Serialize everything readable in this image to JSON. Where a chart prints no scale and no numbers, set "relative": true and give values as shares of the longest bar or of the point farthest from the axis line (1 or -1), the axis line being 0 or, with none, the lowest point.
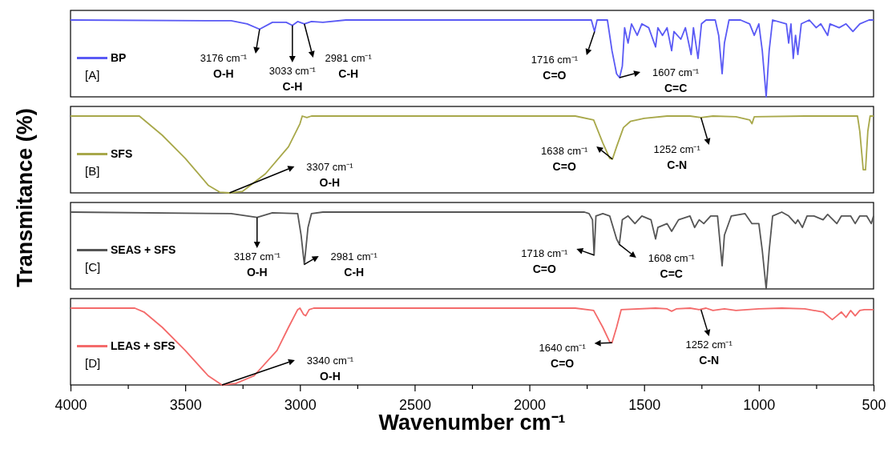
{
  "chart_data": [
    {
      "type": "line",
      "relative": true,
      "xlim": [
        4000,
        500
      ],
      "tick_labels": false,
      "legend": "left",
      "marker": "none",
      "line_style": "solid",
      "ylabel": "Transmitance (%)",
      "series": [
        {
          "name": "BP",
          "color": "#5a5af5",
          "x": [
            4000,
            3300,
            3230,
            3176,
            3120,
            3060,
            3033,
            3010,
            2981,
            2950,
            2900,
            2800,
            2000,
            1730,
            1716,
            1705,
            1660,
            1640,
            1620,
            1607,
            1595,
            1585,
            1570,
            1555,
            1530,
            1510,
            1480,
            1450,
            1440,
            1420,
            1400,
            1380,
            1370,
            1340,
            1320,
            1295,
            1285,
            1265,
            1250,
            1230,
            1190,
            1175,
            1160,
            1150,
            1130,
            1080,
            1040,
            1020,
            1000,
            985,
            968,
            955,
            940,
            880,
            870,
            860,
            850,
            840,
            830,
            815,
            780,
            750,
            730,
            700,
            690,
            650,
            620,
            590,
            560,
            520,
            500
          ],
          "values": [
            1,
            0.99,
            0.95,
            0.88,
            0.97,
            0.97,
            0.93,
            0.98,
            0.95,
            0.98,
            0.97,
            1,
            1,
            1,
            0.85,
            1,
            1,
            0.6,
            0.3,
            0.25,
            0.4,
            0.9,
            0.7,
            0.95,
            0.8,
            0.95,
            0.9,
            0.65,
            0.9,
            0.8,
            0.9,
            0.6,
            0.85,
            0.75,
            0.9,
            0.55,
            0.9,
            0.5,
            0.95,
            1,
            1,
            0.8,
            0.3,
            0.7,
            1,
            1,
            0.95,
            0.8,
            0.95,
            0.6,
            0,
            0.6,
            1,
            0.95,
            0.7,
            0.95,
            0.5,
            0.8,
            0.55,
            0.95,
            1,
            0.9,
            0.95,
            0.8,
            0.95,
            0.9,
            0.95,
            0.85,
            0.95,
            1,
            1
          ]
        }
      ],
      "annotations": [
        "[A]",
        {
          "text": "3176 cm⁻¹\nO-H",
          "x": 3176,
          "y": 0.88
        },
        {
          "text": "3033 cm⁻¹\nC-H",
          "x": 3033,
          "y": 0.93
        },
        {
          "text": "2981 cm⁻¹\nC-H",
          "x": 2981,
          "y": 0.95
        },
        {
          "text": "1716 cm⁻¹\nC=O",
          "x": 1716,
          "y": 0.85
        },
        {
          "text": "1607 cm⁻¹\nC=C",
          "x": 1607,
          "y": 0.25
        }
      ]
    },
    {
      "type": "line",
      "relative": true,
      "xlim": [
        4000,
        500
      ],
      "tick_labels": false,
      "legend": "left",
      "marker": "none",
      "line_style": "solid",
      "series": [
        {
          "name": "SFS",
          "color": "#a8a84a",
          "x": [
            4000,
            3700,
            3600,
            3500,
            3400,
            3350,
            3307,
            3250,
            3150,
            3050,
            3000,
            2990,
            2970,
            2950,
            1800,
            1720,
            1680,
            1650,
            1638,
            1620,
            1590,
            1560,
            1500,
            1400,
            1300,
            1252,
            1200,
            1100,
            1040,
            1030,
            1020,
            800,
            570,
            560,
            545,
            535,
            525,
            515,
            500
          ],
          "values": [
            1,
            1,
            0.75,
            0.45,
            0.1,
            0.01,
            0,
            0.02,
            0.25,
            0.6,
            0.9,
            1,
            0.98,
            1,
            1,
            0.95,
            0.65,
            0.45,
            0.44,
            0.6,
            0.85,
            0.93,
            0.97,
            1,
            1,
            0.98,
            1,
            0.99,
            0.95,
            0.9,
            0.99,
            1,
            1,
            0.8,
            0.3,
            0.3,
            0.8,
            1,
            1
          ]
        }
      ],
      "annotations": [
        "[B]",
        "3307 cm⁻¹\nO-H",
        {
          "text": "1638 cm⁻¹\nC=O",
          "x": 1638,
          "y": 0.44
        },
        {
          "text": "1252 cm⁻¹\nC-N",
          "x": 1252,
          "y": 0.98
        }
      ]
    },
    {
      "type": "line",
      "relative": true,
      "xlim": [
        4000,
        500
      ],
      "tick_labels": false,
      "legend": "left",
      "marker": "none",
      "line_style": "solid",
      "series": [
        {
          "name": "SEAS + SFS",
          "color": "#555555",
          "x": [
            4000,
            3300,
            3187,
            3120,
            3010,
            2995,
            2981,
            2965,
            2950,
            2900,
            1760,
            1740,
            1725,
            1718,
            1710,
            1680,
            1650,
            1620,
            1608,
            1595,
            1570,
            1540,
            1510,
            1470,
            1450,
            1440,
            1400,
            1380,
            1350,
            1300,
            1280,
            1260,
            1240,
            1210,
            1180,
            1160,
            1150,
            1120,
            1060,
            1030,
            1000,
            985,
            968,
            955,
            940,
            900,
            870,
            840,
            830,
            810,
            790,
            760,
            720,
            700,
            660,
            640,
            600,
            580,
            560,
            530,
            510,
            500
          ],
          "values": [
            1,
            0.98,
            0.93,
            0.99,
            0.98,
            0.7,
            0.32,
            0.8,
            0.98,
            1,
            1,
            0.98,
            0.9,
            0.44,
            0.95,
            0.98,
            0.95,
            0.65,
            0.58,
            0.9,
            0.95,
            0.85,
            0.95,
            0.9,
            0.65,
            0.8,
            0.85,
            0.75,
            0.9,
            0.95,
            0.8,
            0.9,
            0.85,
            0.95,
            0.95,
            0.3,
            0.7,
            0.95,
            0.98,
            0.85,
            0.85,
            0.5,
            0,
            0.5,
            0.95,
            1,
            0.95,
            0.85,
            0.9,
            0.8,
            0.95,
            0.95,
            0.9,
            0.97,
            0.85,
            0.95,
            0.95,
            0.85,
            0.95,
            0.95,
            0.85,
            0.95
          ]
        }
      ],
      "annotations": [
        "[C]",
        {
          "text": "3187 cm⁻¹\nO-H",
          "x": 3187,
          "y": 0.93
        },
        {
          "text": "2981 cm⁻¹\nC-H",
          "x": 2981,
          "y": 0.32
        },
        {
          "text": "1718 cm⁻¹\nC=O",
          "x": 1718,
          "y": 0.44
        },
        {
          "text": "1608 cm⁻¹\nC=C",
          "x": 1608,
          "y": 0.58
        }
      ]
    },
    {
      "type": "line",
      "relative": true,
      "xlim": [
        4000,
        500
      ],
      "tick_labels": "x",
      "legend": "left",
      "marker": "none",
      "line_style": "solid",
      "xlabel": "Wavenumber cm⁻¹",
      "xticks": [
        4000,
        {
          "value": 3750,
          "label": null
        },
        3500,
        {
          "value": 3250,
          "label": null
        },
        3000,
        {
          "value": 2750,
          "label": null
        },
        2500,
        {
          "value": 2250,
          "label": null
        },
        2000,
        {
          "value": 1750,
          "label": null
        },
        1500,
        {
          "value": 1250,
          "label": null
        },
        1000,
        {
          "value": 750,
          "label": null
        },
        500
      ],
      "series": [
        {
          "name": "LEAS + SFS",
          "color": "#f46a6a",
          "x": [
            4000,
            3720,
            3680,
            3600,
            3500,
            3400,
            3340,
            3280,
            3200,
            3100,
            3050,
            3010,
            3000,
            2985,
            2975,
            2960,
            2940,
            1800,
            1720,
            1680,
            1650,
            1640,
            1620,
            1600,
            1450,
            1400,
            1380,
            1360,
            1300,
            1260,
            1230,
            1200,
            1150,
            1100,
            1000,
            900,
            800,
            720,
            680,
            660,
            640,
            620,
            600,
            580,
            560,
            540,
            500
          ],
          "values": [
            1,
            1,
            0.95,
            0.75,
            0.45,
            0.12,
            0,
            0.02,
            0.12,
            0.45,
            0.75,
            0.98,
            1,
            0.92,
            0.9,
            0.98,
            1,
            1,
            0.97,
            0.75,
            0.56,
            0.55,
            0.75,
            0.98,
            1,
            0.99,
            0.96,
            0.99,
            1,
            0.98,
            1,
            0.97,
            0.99,
            0.97,
            0.99,
            1,
            0.99,
            0.95,
            0.85,
            0.9,
            0.95,
            0.88,
            0.97,
            0.9,
            0.97,
            0.98,
            0.98
          ]
        }
      ],
      "annotations": [
        "[D]",
        "3340 cm⁻¹\nO-H",
        {
          "text": "1640 cm⁻¹\nC=O",
          "x": 1640,
          "y": 0.55
        },
        {
          "text": "1252 cm⁻¹\nC-N",
          "x": 1252,
          "y": 0.98
        }
      ]
    }
  ]
}
